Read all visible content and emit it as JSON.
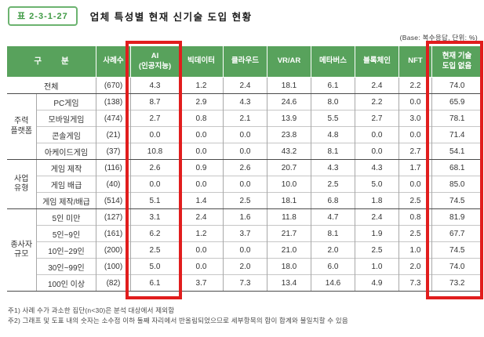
{
  "title_badge": "표 2-3-1-27",
  "title": "업체 특성별 현재 신기술 도입 현황",
  "base_note": "(Base: 복수응답, 단위: %)",
  "colors": {
    "header_green": "#58a25c",
    "badge_green": "#3f9a44",
    "highlight_red": "#e11d1d"
  },
  "table": {
    "header": {
      "category": "구 분",
      "cases": "사례수",
      "columns": [
        {
          "lines": [
            "AI",
            "(인공지능)"
          ],
          "highlight": true
        },
        {
          "lines": [
            "빅데이터"
          ],
          "highlight": false
        },
        {
          "lines": [
            "클라우드"
          ],
          "highlight": false
        },
        {
          "lines": [
            "VR/AR"
          ],
          "highlight": false
        },
        {
          "lines": [
            "메타버스"
          ],
          "highlight": false
        },
        {
          "lines": [
            "블록체인"
          ],
          "highlight": false
        },
        {
          "lines": [
            "NFT"
          ],
          "highlight": false
        },
        {
          "lines": [
            "현재 기술",
            "도입 없음"
          ],
          "highlight": true
        }
      ]
    },
    "rows": [
      {
        "total": true,
        "label": "전체",
        "cases": "(670)",
        "values": [
          "4.3",
          "1.2",
          "2.4",
          "18.1",
          "6.1",
          "2.4",
          "2.2",
          "74.0"
        ]
      },
      {
        "group": {
          "lines": [
            "주력",
            "플랫폼"
          ],
          "span": 4
        },
        "label": "PC게임",
        "cases": "(138)",
        "values": [
          "8.7",
          "2.9",
          "4.3",
          "24.6",
          "8.0",
          "2.2",
          "0.0",
          "65.9"
        ]
      },
      {
        "label": "모바일게임",
        "cases": "(474)",
        "values": [
          "2.7",
          "0.8",
          "2.1",
          "13.9",
          "5.5",
          "2.7",
          "3.0",
          "78.1"
        ]
      },
      {
        "label": "콘솔게임",
        "cases": "(21)",
        "values": [
          "0.0",
          "0.0",
          "0.0",
          "23.8",
          "4.8",
          "0.0",
          "0.0",
          "71.4"
        ]
      },
      {
        "label": "아케이드게임",
        "cases": "(37)",
        "values": [
          "10.8",
          "0.0",
          "0.0",
          "43.2",
          "8.1",
          "0.0",
          "2.7",
          "54.1"
        ],
        "group_end": true
      },
      {
        "group": {
          "lines": [
            "사업",
            "유형"
          ],
          "span": 3
        },
        "label": "게임 제작",
        "cases": "(116)",
        "values": [
          "2.6",
          "0.9",
          "2.6",
          "20.7",
          "4.3",
          "4.3",
          "1.7",
          "68.1"
        ]
      },
      {
        "label": "게임 배급",
        "cases": "(40)",
        "values": [
          "0.0",
          "0.0",
          "0.0",
          "10.0",
          "2.5",
          "5.0",
          "0.0",
          "85.0"
        ]
      },
      {
        "label": "게임 제작/배급",
        "cases": "(514)",
        "values": [
          "5.1",
          "1.4",
          "2.5",
          "18.1",
          "6.8",
          "1.8",
          "2.5",
          "74.5"
        ],
        "group_end": true
      },
      {
        "group": {
          "lines": [
            "종사자",
            "규모"
          ],
          "span": 5
        },
        "label": "5인 미만",
        "cases": "(127)",
        "values": [
          "3.1",
          "2.4",
          "1.6",
          "11.8",
          "4.7",
          "2.4",
          "0.8",
          "81.9"
        ]
      },
      {
        "label": "5인~9인",
        "cases": "(161)",
        "values": [
          "6.2",
          "1.2",
          "3.7",
          "21.7",
          "8.1",
          "1.9",
          "2.5",
          "67.7"
        ]
      },
      {
        "label": "10인~29인",
        "cases": "(200)",
        "values": [
          "2.5",
          "0.0",
          "0.0",
          "21.0",
          "2.0",
          "2.5",
          "1.0",
          "74.5"
        ]
      },
      {
        "label": "30인~99인",
        "cases": "(100)",
        "values": [
          "5.0",
          "0.0",
          "2.0",
          "18.0",
          "6.0",
          "1.0",
          "2.0",
          "74.0"
        ]
      },
      {
        "label": "100인 이상",
        "cases": "(82)",
        "values": [
          "6.1",
          "3.7",
          "7.3",
          "13.4",
          "14.6",
          "4.9",
          "7.3",
          "73.2"
        ],
        "group_end": true
      }
    ]
  },
  "footnotes": [
    "주1) 사례 수가 과소한 집단(n<30)은 분석 대상에서 제외함",
    "주2) 그래프 및 도표 내의 숫자는 소수점 이하 둘째 자리에서 반올림되었으므로 세부항목의 합이 합계와 불일치할 수 있음"
  ]
}
